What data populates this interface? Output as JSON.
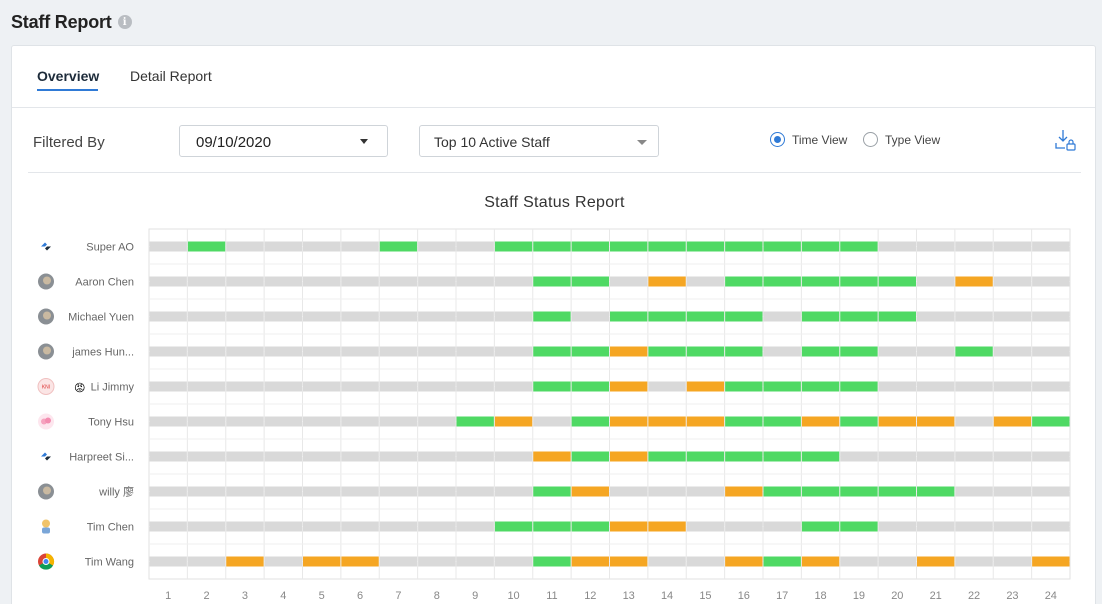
{
  "page": {
    "title": "Staff Report",
    "info_icon": "info-icon"
  },
  "tabs": [
    {
      "label": "Overview",
      "active": true
    },
    {
      "label": "Detail Report",
      "active": false
    }
  ],
  "filters": {
    "label": "Filtered By",
    "date": "09/10/2020",
    "staff": "Top 10 Active Staff",
    "views": [
      {
        "label": "Time View",
        "checked": true
      },
      {
        "label": "Type View",
        "checked": false
      }
    ],
    "download_icon": "download-lock-icon"
  },
  "colors": {
    "active": "#4fd964",
    "away": "#f5a623",
    "offline": "#d9d9d9",
    "accent": "#2f7ad6"
  },
  "chart_data": {
    "type": "timeline",
    "title": "Staff Status Report",
    "x": [
      1,
      2,
      3,
      4,
      5,
      6,
      7,
      8,
      9,
      10,
      11,
      12,
      13,
      14,
      15,
      16,
      17,
      18,
      19,
      20,
      21,
      22,
      23,
      24
    ],
    "staff": [
      {
        "name": "Super AO",
        "avatar": "logo",
        "status": [
          "o",
          "g",
          "o",
          "o",
          "o",
          "o",
          "g",
          "o",
          "o",
          "g",
          "g",
          "g",
          "g",
          "g",
          "g",
          "g",
          "g",
          "g",
          "g",
          "o",
          "o",
          "o",
          "o",
          "o"
        ]
      },
      {
        "name": "Aaron Chen",
        "avatar": "photo",
        "status": [
          "o",
          "o",
          "o",
          "o",
          "o",
          "o",
          "o",
          "o",
          "o",
          "o",
          "g",
          "g",
          "o",
          "y",
          "o",
          "g",
          "g",
          "g",
          "g",
          "g",
          "o",
          "y",
          "o",
          "o"
        ]
      },
      {
        "name": "Michael Yuen",
        "avatar": "photo",
        "status": [
          "o",
          "o",
          "o",
          "o",
          "o",
          "o",
          "o",
          "o",
          "o",
          "o",
          "g",
          "o",
          "g",
          "g",
          "g",
          "g",
          "o",
          "g",
          "g",
          "g",
          "o",
          "o",
          "o",
          "o"
        ]
      },
      {
        "name": "james Hun...",
        "avatar": "photo",
        "status": [
          "o",
          "o",
          "o",
          "o",
          "o",
          "o",
          "o",
          "o",
          "o",
          "o",
          "g",
          "g",
          "y",
          "g",
          "g",
          "g",
          "o",
          "g",
          "g",
          "o",
          "o",
          "g",
          "o",
          "o"
        ]
      },
      {
        "name": "Li Jimmy",
        "avatar": "text",
        "avatar_text": "KNI",
        "emoji": "😡",
        "status": [
          "o",
          "o",
          "o",
          "o",
          "o",
          "o",
          "o",
          "o",
          "o",
          "o",
          "g",
          "g",
          "y",
          "o",
          "y",
          "g",
          "g",
          "g",
          "g",
          "o",
          "o",
          "o",
          "o",
          "o"
        ]
      },
      {
        "name": "Tony Hsu",
        "avatar": "flower",
        "status": [
          "o",
          "o",
          "o",
          "o",
          "o",
          "o",
          "o",
          "o",
          "g",
          "y",
          "o",
          "g",
          "y",
          "y",
          "y",
          "g",
          "g",
          "y",
          "g",
          "y",
          "y",
          "o",
          "y",
          "g"
        ]
      },
      {
        "name": "Harpreet Si...",
        "avatar": "logo",
        "status": [
          "o",
          "o",
          "o",
          "o",
          "o",
          "o",
          "o",
          "o",
          "o",
          "o",
          "y",
          "g",
          "y",
          "g",
          "g",
          "g",
          "g",
          "g",
          "o",
          "o",
          "o",
          "o",
          "o",
          "o"
        ]
      },
      {
        "name": "willy 廖",
        "avatar": "photo",
        "status": [
          "o",
          "o",
          "o",
          "o",
          "o",
          "o",
          "o",
          "o",
          "o",
          "o",
          "g",
          "y",
          "o",
          "o",
          "o",
          "y",
          "g",
          "g",
          "g",
          "g",
          "g",
          "o",
          "o",
          "o"
        ]
      },
      {
        "name": "Tim Chen",
        "avatar": "cartoon",
        "status": [
          "o",
          "o",
          "o",
          "o",
          "o",
          "o",
          "o",
          "o",
          "o",
          "g",
          "g",
          "g",
          "y",
          "y",
          "o",
          "o",
          "o",
          "g",
          "g",
          "o",
          "o",
          "o",
          "o",
          "o"
        ]
      },
      {
        "name": "Tim Wang",
        "avatar": "chrome",
        "status": [
          "o",
          "o",
          "y",
          "o",
          "y",
          "y",
          "o",
          "o",
          "o",
          "o",
          "g",
          "y",
          "y",
          "o",
          "o",
          "y",
          "g",
          "y",
          "o",
          "o",
          "y",
          "o",
          "o",
          "y"
        ]
      }
    ]
  }
}
